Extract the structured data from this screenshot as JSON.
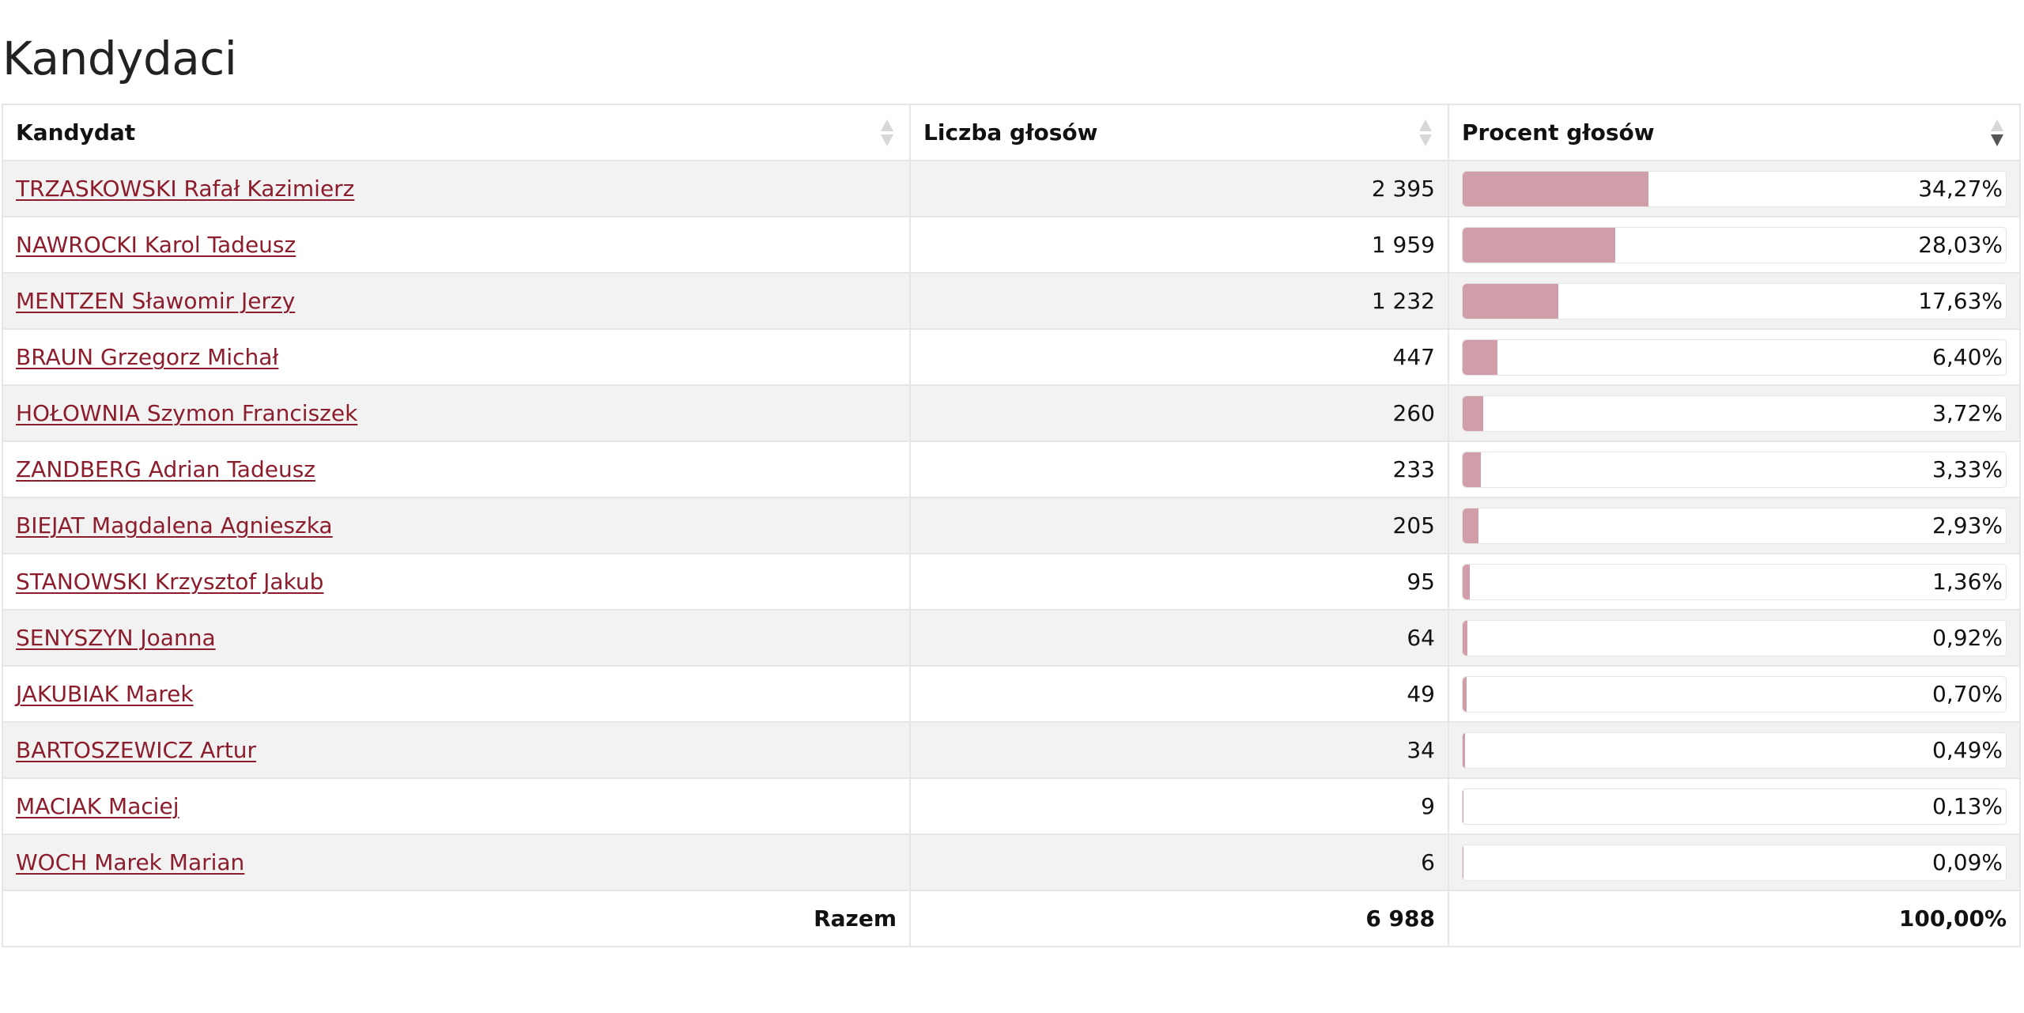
{
  "page": {
    "title": "Kandydaci"
  },
  "table": {
    "headers": {
      "candidate": "Kandydat",
      "votes": "Liczba głosów",
      "percent": "Procent głosów"
    },
    "sort": {
      "column": "percent",
      "direction": "descending"
    },
    "rows": [
      {
        "name": "TRZASKOWSKI Rafał Kazimierz",
        "votes": "2 395",
        "percent": "34,27%",
        "percent_value": 34.27
      },
      {
        "name": "NAWROCKI Karol Tadeusz",
        "votes": "1 959",
        "percent": "28,03%",
        "percent_value": 28.03
      },
      {
        "name": "MENTZEN Sławomir Jerzy",
        "votes": "1 232",
        "percent": "17,63%",
        "percent_value": 17.63
      },
      {
        "name": "BRAUN Grzegorz Michał",
        "votes": "447",
        "percent": "6,40%",
        "percent_value": 6.4
      },
      {
        "name": "HOŁOWNIA Szymon Franciszek",
        "votes": "260",
        "percent": "3,72%",
        "percent_value": 3.72
      },
      {
        "name": "ZANDBERG Adrian Tadeusz",
        "votes": "233",
        "percent": "3,33%",
        "percent_value": 3.33
      },
      {
        "name": "BIEJAT Magdalena Agnieszka",
        "votes": "205",
        "percent": "2,93%",
        "percent_value": 2.93
      },
      {
        "name": "STANOWSKI Krzysztof Jakub",
        "votes": "95",
        "percent": "1,36%",
        "percent_value": 1.36
      },
      {
        "name": "SENYSZYN Joanna",
        "votes": "64",
        "percent": "0,92%",
        "percent_value": 0.92
      },
      {
        "name": "JAKUBIAK Marek",
        "votes": "49",
        "percent": "0,70%",
        "percent_value": 0.7
      },
      {
        "name": "BARTOSZEWICZ Artur",
        "votes": "34",
        "percent": "0,49%",
        "percent_value": 0.49
      },
      {
        "name": "MACIAK Maciej",
        "votes": "9",
        "percent": "0,13%",
        "percent_value": 0.13
      },
      {
        "name": "WOCH Marek Marian",
        "votes": "6",
        "percent": "0,09%",
        "percent_value": 0.09
      }
    ],
    "total": {
      "label": "Razem",
      "votes": "6 988",
      "percent": "100,00%"
    }
  },
  "colors": {
    "link": "#8b1d2c",
    "bar_fill": "#d09ea8",
    "row_stripe": "#f2f2f2"
  }
}
